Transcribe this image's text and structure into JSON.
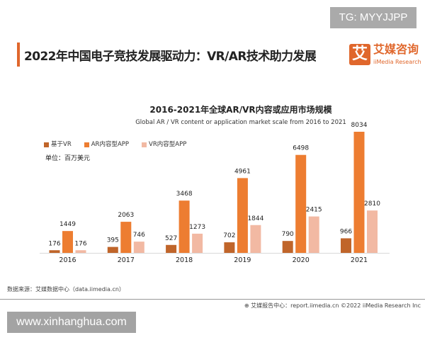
{
  "watermark_top": "TG: MYYJJPP",
  "headline": "2022年中国电子竞技发展驱动力：VR/AR技术助力发展",
  "logo": {
    "mark": "艾",
    "cn": "艾媒咨询",
    "en": "iiMedia Research"
  },
  "unit": "单位：百万美元",
  "source": "数据来源：艾媒数据中心（data.iimedia.cn）",
  "footer": "艾媒报告中心：report.iimedia.cn   ©2022  iiMedia Research  Inc",
  "watermark_bottom": "www.xinhanghua.com",
  "chart_data": {
    "type": "bar",
    "title": "2016-2021年全球AR/VR内容或应用市场规模",
    "subtitle": "Global AR / VR content or application market scale from 2016 to 2021",
    "categories": [
      "2016",
      "2017",
      "2018",
      "2019",
      "2020",
      "2021"
    ],
    "series": [
      {
        "name": "基于VR",
        "color": "#c0652a",
        "values": [
          176,
          395,
          527,
          702,
          790,
          966
        ]
      },
      {
        "name": "AR内容型APP",
        "color": "#ed7d31",
        "values": [
          1449,
          2063,
          3468,
          4961,
          6498,
          8034
        ]
      },
      {
        "name": "VR内容型APP",
        "color": "#f2b9a3",
        "values": [
          176,
          746,
          1273,
          1844,
          2415,
          2810
        ]
      }
    ],
    "ylim": [
      0,
      8034
    ],
    "grid": false,
    "legend": "top-left",
    "data_labels": true
  }
}
